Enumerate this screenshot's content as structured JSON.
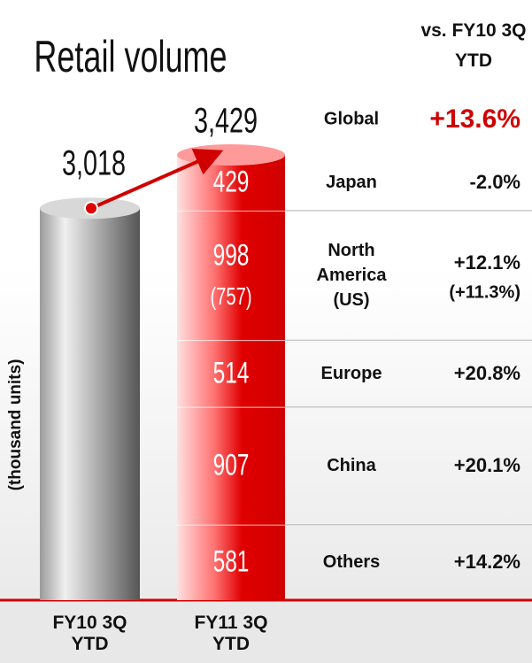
{
  "chart_data": {
    "type": "stacked_bar",
    "title": "Retail volume",
    "y_label": "(thousand units)",
    "comparison_header": "vs. FY10 3Q YTD",
    "categories": [
      "FY10 3Q YTD",
      "FY11 3Q YTD"
    ],
    "total_name": "Global",
    "totals": {
      "values": [
        3018,
        3429
      ],
      "value_labels": [
        "3,018",
        "3,429"
      ],
      "colors": [
        "#8a8a8a",
        "#e00000"
      ]
    },
    "total_change": 13.6,
    "total_change_label": "+13.6%",
    "series": [
      {
        "name": "Japan",
        "color": "#e00000",
        "values": [
          null,
          429
        ],
        "change": -2.0,
        "change_label": "-2.0%"
      },
      {
        "name": "North America (US)",
        "color": "#e00000",
        "values": [
          null,
          998
        ],
        "change": 12.1,
        "change_label": "+12.1%",
        "sub_value": 757,
        "sub_value_label": "(757)",
        "sub_change": 11.3,
        "sub_change_label": "(+11.3%)"
      },
      {
        "name": "Europe",
        "color": "#e00000",
        "values": [
          null,
          514
        ],
        "change": 20.8,
        "change_label": "+20.8%"
      },
      {
        "name": "China",
        "color": "#e00000",
        "values": [
          null,
          907
        ],
        "change": 20.1,
        "change_label": "+20.1%"
      },
      {
        "name": "Others",
        "color": "#e00000",
        "values": [
          null,
          581
        ],
        "change": 14.2,
        "change_label": "+14.2%"
      }
    ]
  }
}
